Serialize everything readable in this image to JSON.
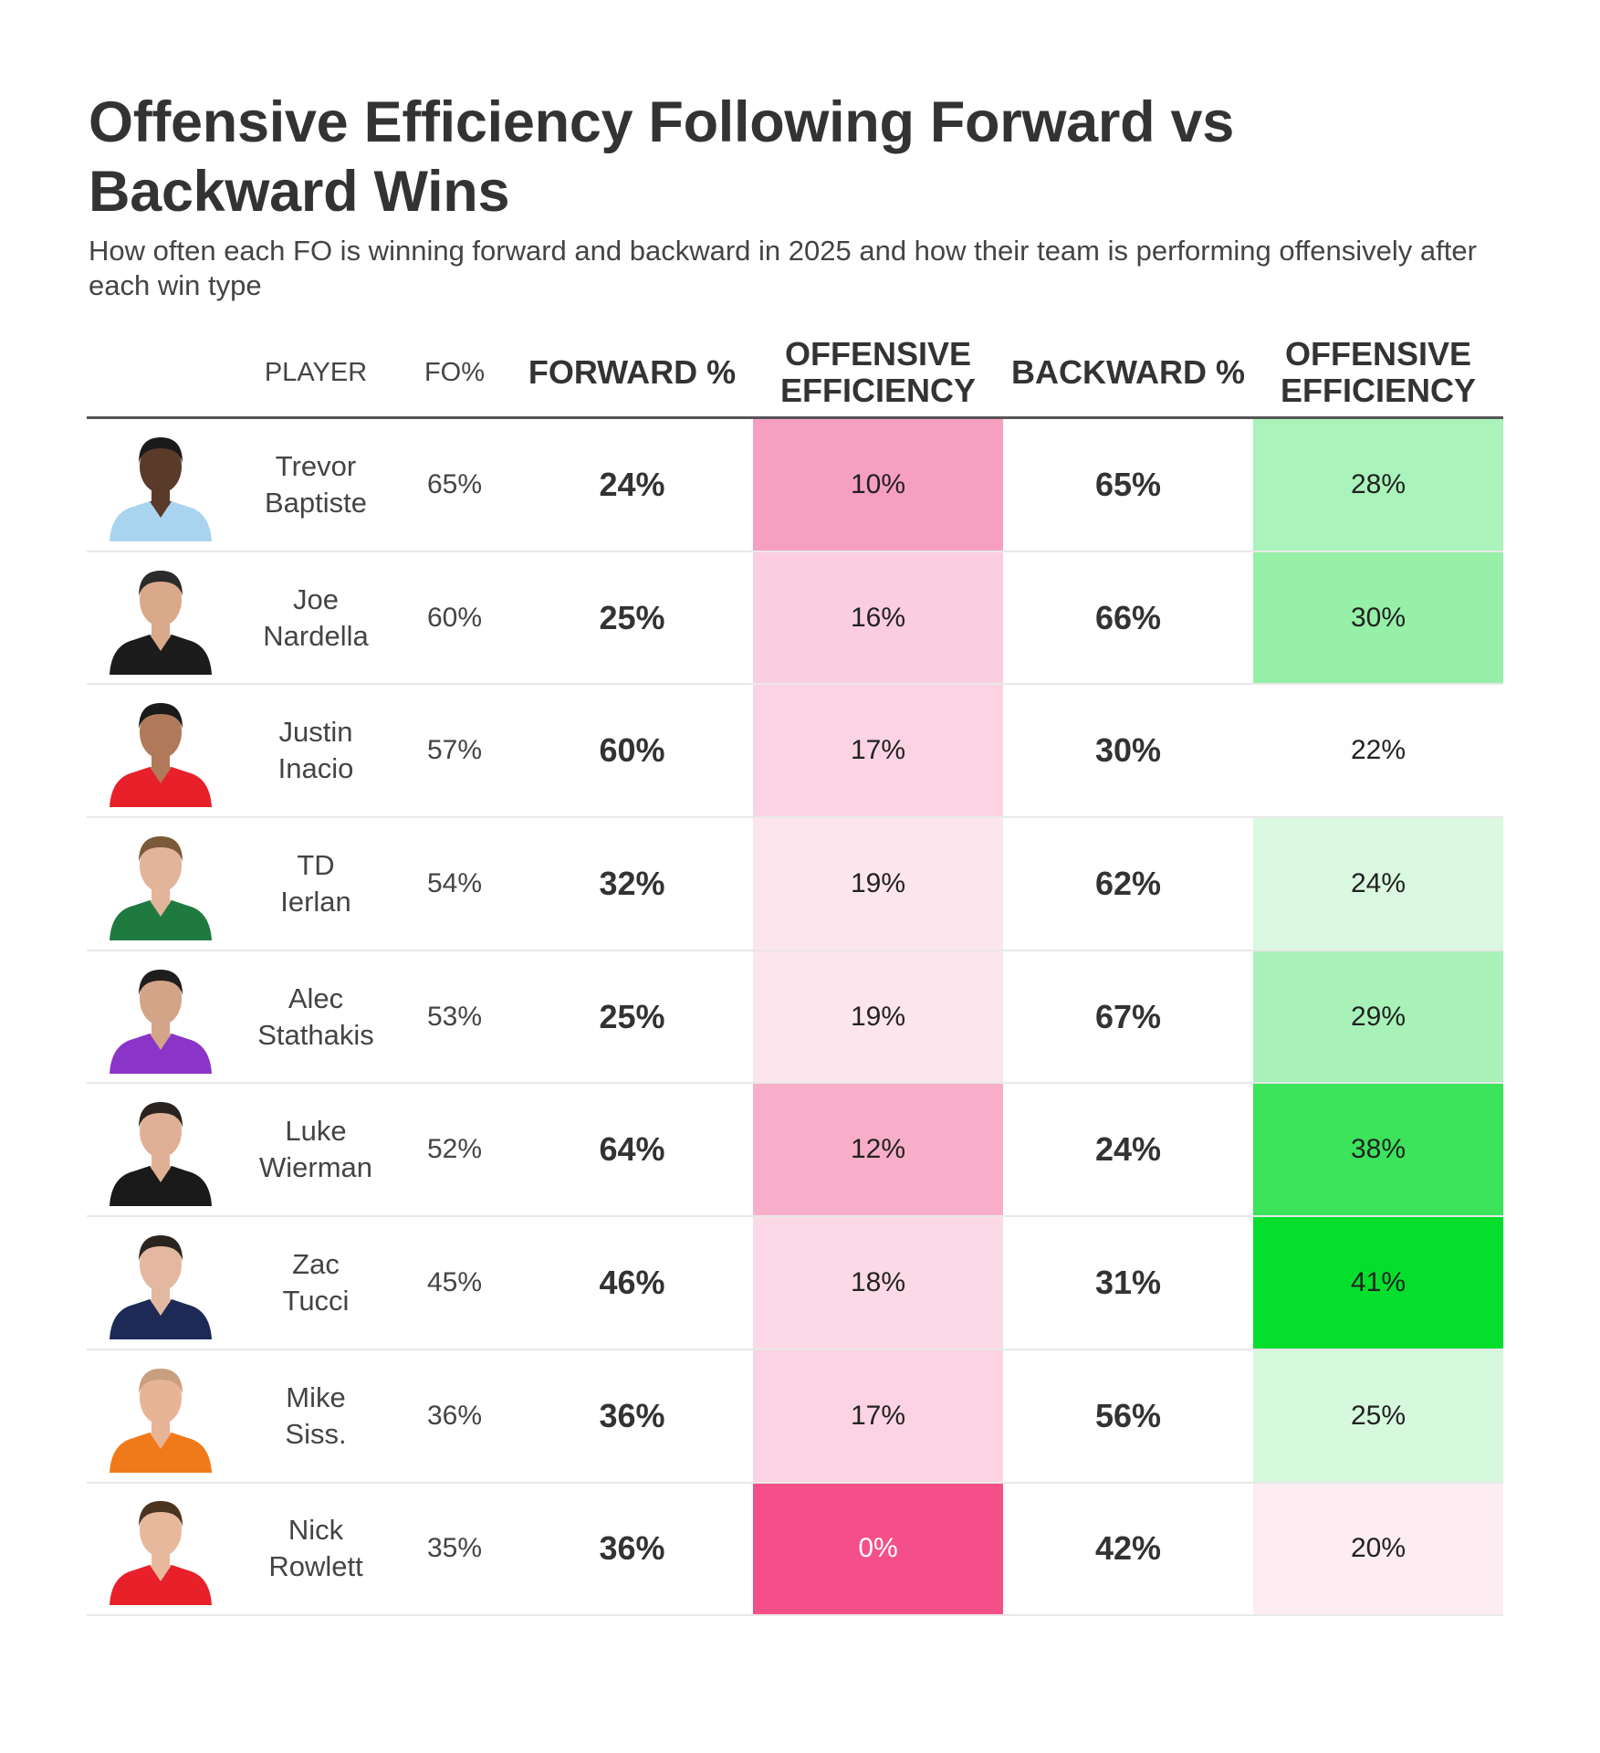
{
  "title": "Offensive Efficiency Following Forward vs Backward Wins",
  "subtitle": "How often each FO is winning forward and backward in 2025 and how their team is performing offensively after each win type",
  "headers": {
    "player": "PLAYER",
    "fo": "FO%",
    "forward": "FORWARD %",
    "eff_forward": "OFFENSIVE EFFICIENCY",
    "backward": "BACKWARD %",
    "eff_backward": "OFFENSIVE EFFICIENCY"
  },
  "rows": [
    {
      "first": "Trevor",
      "last": "Baptiste",
      "fo": "65%",
      "forward": "24%",
      "eff_forward": "10%",
      "backward": "65%",
      "eff_backward": "28%",
      "eff_forward_color": "#f79fc0",
      "eff_backward_color": "#aaf3bb",
      "jersey": "#a9d4f0",
      "skin": "#5a3a28",
      "hair": "#1a1a1a"
    },
    {
      "first": "Joe",
      "last": "Nardella",
      "fo": "60%",
      "forward": "25%",
      "eff_forward": "16%",
      "backward": "66%",
      "eff_backward": "30%",
      "eff_forward_color": "#fbcde0",
      "eff_backward_color": "#96f0a7",
      "jersey": "#1c1c1c",
      "skin": "#d9a98a",
      "hair": "#2b2b2b"
    },
    {
      "first": "Justin",
      "last": "Inacio",
      "fo": "57%",
      "forward": "60%",
      "eff_forward": "17%",
      "backward": "30%",
      "eff_backward": "22%",
      "eff_forward_color": "#fbd3e3",
      "eff_backward_color": "#fdfefd",
      "jersey": "#e8202a",
      "skin": "#b07a5a",
      "hair": "#1a1a1a"
    },
    {
      "first": "TD",
      "last": "Ierlan",
      "fo": "54%",
      "forward": "32%",
      "eff_forward": "19%",
      "backward": "62%",
      "eff_backward": "24%",
      "eff_forward_color": "#fde5ee",
      "eff_backward_color": "#dbf8e0",
      "jersey": "#1e7a3e",
      "skin": "#e2b49a",
      "hair": "#7a5a3a"
    },
    {
      "first": "Alec",
      "last": "Stathakis",
      "fo": "53%",
      "forward": "25%",
      "eff_forward": "19%",
      "backward": "67%",
      "eff_backward": "29%",
      "eff_forward_color": "#fde5ee",
      "eff_backward_color": "#a8f2b9",
      "jersey": "#8a35c8",
      "skin": "#d4a488",
      "hair": "#1e1e1e"
    },
    {
      "first": "Luke",
      "last": "Wierman",
      "fo": "52%",
      "forward": "64%",
      "eff_forward": "12%",
      "backward": "24%",
      "eff_backward": "38%",
      "eff_forward_color": "#f8aec9",
      "eff_backward_color": "#3be45a",
      "jersey": "#1a1a1a",
      "skin": "#e0b096",
      "hair": "#2a2420"
    },
    {
      "first": "Zac",
      "last": "Tucci",
      "fo": "45%",
      "forward": "46%",
      "eff_forward": "18%",
      "backward": "31%",
      "eff_backward": "41%",
      "eff_forward_color": "#fcd9e6",
      "eff_backward_color": "#04df2e",
      "jersey": "#1d2a55",
      "skin": "#e4b8a0",
      "hair": "#2a2420"
    },
    {
      "first": "Mike",
      "last": "Siss.",
      "fo": "36%",
      "forward": "36%",
      "eff_forward": "17%",
      "backward": "56%",
      "eff_backward": "25%",
      "eff_forward_color": "#fbd3e3",
      "eff_backward_color": "#d6f8dc",
      "jersey": "#f07a1a",
      "skin": "#e8b496",
      "hair": "#c8a080"
    },
    {
      "first": "Nick",
      "last": "Rowlett",
      "fo": "35%",
      "forward": "36%",
      "eff_forward": "0%",
      "backward": "42%",
      "eff_backward": "20%",
      "eff_forward_color": "#f44f89",
      "eff_backward_color": "#fdedf2",
      "jersey": "#e8202a",
      "skin": "#e8b89c",
      "hair": "#4a3420"
    }
  ]
}
